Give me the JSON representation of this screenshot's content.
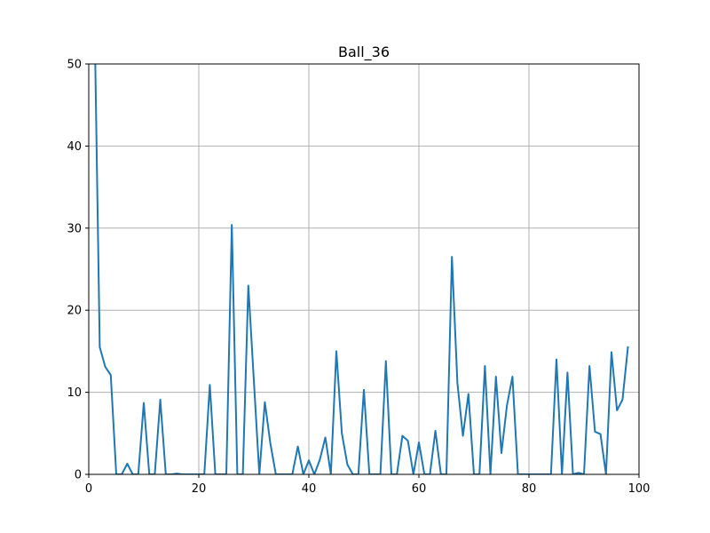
{
  "chart_data": {
    "type": "line",
    "title": "Ball_36",
    "xlabel": "",
    "ylabel": "",
    "xlim": [
      0,
      100
    ],
    "ylim": [
      0,
      50
    ],
    "xticks": [
      0,
      20,
      40,
      60,
      80,
      100
    ],
    "yticks": [
      0,
      10,
      20,
      30,
      40,
      50
    ],
    "grid": true,
    "color": "#1f77b4",
    "series": [
      {
        "x": [
          1,
          2,
          3,
          4,
          5,
          6,
          7,
          8,
          9,
          10,
          11,
          12,
          13,
          14,
          15,
          16,
          17,
          18,
          19,
          20,
          21,
          22,
          23,
          24,
          25,
          26,
          27,
          28,
          29,
          30,
          31,
          32,
          33,
          34,
          35,
          36,
          37,
          38,
          39,
          40,
          41,
          42,
          43,
          44,
          45,
          46,
          47,
          48,
          49,
          50,
          51,
          52,
          53,
          54,
          55,
          56,
          57,
          58,
          59,
          60,
          61,
          62,
          63,
          64,
          65,
          66,
          67,
          68,
          69,
          70,
          71,
          72,
          73,
          74,
          75,
          76,
          77,
          78,
          79,
          80,
          81,
          82,
          83,
          84,
          85,
          86,
          87,
          88,
          89,
          90,
          91,
          92,
          93,
          94,
          95,
          96,
          97,
          98
        ],
        "values": [
          58,
          15.5,
          13.1,
          12.1,
          0,
          0,
          1.3,
          0,
          0,
          8.7,
          0,
          0,
          9.1,
          0,
          0,
          0.1,
          0,
          0,
          0,
          0,
          0,
          10.9,
          0,
          0,
          0,
          30.4,
          0,
          0,
          23,
          11.5,
          0,
          8.8,
          3.8,
          0,
          0,
          0,
          0,
          3.4,
          0,
          1.7,
          0,
          1.8,
          4.5,
          0,
          15,
          5,
          1.2,
          0,
          0,
          10.3,
          0,
          0,
          0,
          13.8,
          0,
          0,
          4.7,
          4.1,
          0,
          3.9,
          0,
          0,
          5.3,
          0,
          0,
          26.5,
          11.1,
          4.7,
          9.8,
          0,
          0,
          13.2,
          0,
          11.9,
          2.6,
          8.4,
          11.9,
          0,
          0,
          0,
          0,
          0,
          0,
          0,
          14,
          0,
          12.4,
          0,
          0.2,
          0,
          13.2,
          5.2,
          4.9,
          0,
          14.9,
          7.8,
          9.1,
          15.6
        ]
      }
    ]
  }
}
